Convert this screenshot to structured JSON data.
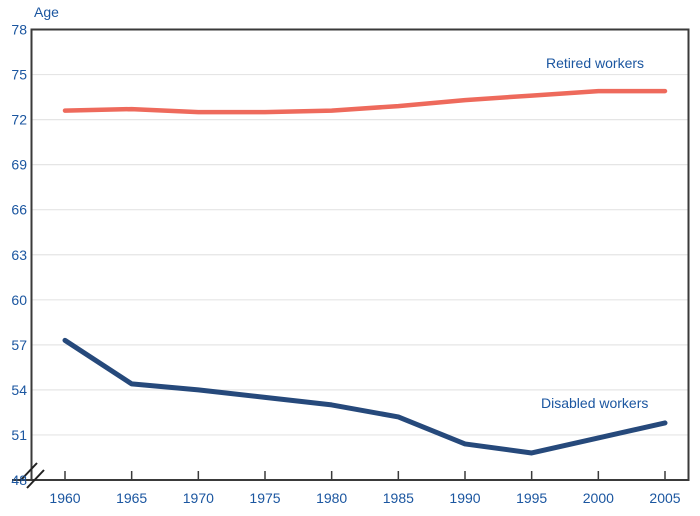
{
  "chart_data": {
    "type": "line",
    "title": "",
    "xlabel": "",
    "ylabel": "Age",
    "x": [
      1960,
      1965,
      1970,
      1975,
      1980,
      1985,
      1990,
      1995,
      2000,
      2005
    ],
    "x_tick_labels": [
      "1960",
      "1965",
      "1970",
      "1975",
      "1980",
      "1985",
      "1990",
      "1995",
      "2000",
      "2005"
    ],
    "series": [
      {
        "name": "Retired workers",
        "color": "#EE6A5C",
        "stroke_width": 4.5,
        "values": [
          72.6,
          72.7,
          72.5,
          72.5,
          72.6,
          72.9,
          73.3,
          73.6,
          73.9,
          73.9
        ]
      },
      {
        "name": "Disabled workers",
        "color": "#26497B",
        "stroke_width": 5,
        "values": [
          57.3,
          54.4,
          54.0,
          53.5,
          53.0,
          52.2,
          50.4,
          49.8,
          50.8,
          51.8
        ]
      }
    ],
    "y_ticks": [
      48,
      51,
      54,
      57,
      60,
      63,
      66,
      69,
      72,
      75,
      78
    ],
    "y_tick_labels": [
      "48",
      "51",
      "54",
      "57",
      "60",
      "63",
      "66",
      "69",
      "72",
      "75",
      "78"
    ],
    "ylim": [
      48,
      78
    ],
    "xlim": [
      1960,
      2005
    ],
    "grid": "horizontal",
    "axis_break_bottom_left": true,
    "legend_position": "inline-annotations"
  },
  "style": {
    "text_color": "#1B56A0",
    "axis_color": "#3A3A3A",
    "grid_color": "#E5E5E5",
    "background": "#FFFFFF"
  }
}
